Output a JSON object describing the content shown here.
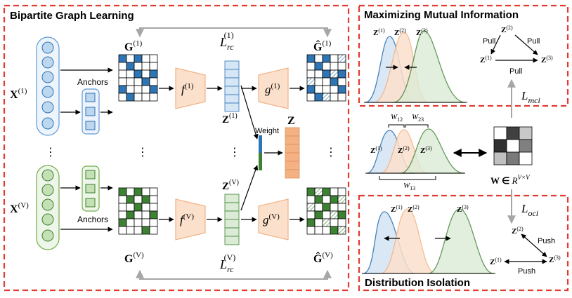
{
  "panels": {
    "bgl": {
      "title": "Bipartite Graph Learning"
    },
    "mmi": {
      "title": "Maximizing Mutual Information"
    },
    "di": {
      "title": "Distribution Isolation"
    }
  },
  "bgl": {
    "x1": "X",
    "x1_sup": "(1)",
    "xv": "X",
    "xv_sup": "(V)",
    "anchors_1": "Anchors",
    "anchors_v": "Anchors",
    "g1": "G",
    "g1_sup": "(1)",
    "gv": "G",
    "gv_sup": "(V)",
    "f1": "f",
    "f1_sup": "(1)",
    "fv": "f",
    "fv_sup": "(V)",
    "l1": "L",
    "l1_sub": "rc",
    "l1_sup": "(1)",
    "lv": "L",
    "lv_sub": "rc",
    "lv_sup": "(V)",
    "z1": "Z",
    "z1_sup": "(1)",
    "zv": "Z",
    "zv_sup": "(V)",
    "g1f": "g",
    "g1f_sup": "(1)",
    "gvf": "g",
    "gvf_sup": "(V)",
    "gh1": "Ĝ",
    "gh1_sup": "(1)",
    "ghv": "Ĝ",
    "ghv_sup": "(V)",
    "weight": "Weight",
    "z": "Z",
    "dots": "⋮"
  },
  "mmi": {
    "z1": "Z",
    "z1_sup": "(1)",
    "z2": "Z",
    "z2_sup": "(2)",
    "z3": "Z",
    "z3_sup": "(3)",
    "pull_left": "Pull",
    "pull_right": "Pull",
    "pull_bottom": "Pull",
    "lmci": "L",
    "lmci_sub": "mci"
  },
  "mid": {
    "w12": "W",
    "w12_sub": "12",
    "w23": "W",
    "w23_sub": "23",
    "w13": "W",
    "w13_sub": "13",
    "z1": "Z",
    "z1_sup": "(1)",
    "z2": "Z",
    "z2_sup": "(2)",
    "z3": "Z",
    "z3_sup": "(3)",
    "w_label": "W ∈ ",
    "w_R": "R",
    "w_R_sup": "V×V"
  },
  "di": {
    "z1": "Z",
    "z1_sup": "(1)",
    "z2": "Z",
    "z2_sup": "(2)",
    "z3": "Z",
    "z3_sup": "(3)",
    "push_right": "Push",
    "push_bottom": "Push",
    "loci": "L",
    "loci_sub": "oci"
  },
  "colors": {
    "red_dash": "#e03c31",
    "blue": "#2e75b6",
    "blue_light": "#d6e6f5",
    "green": "#3d8233",
    "green_light": "#dcebd6",
    "orange": "#f4b183",
    "orange_light": "#fbe0cc",
    "gray": "#a6a6a6"
  }
}
